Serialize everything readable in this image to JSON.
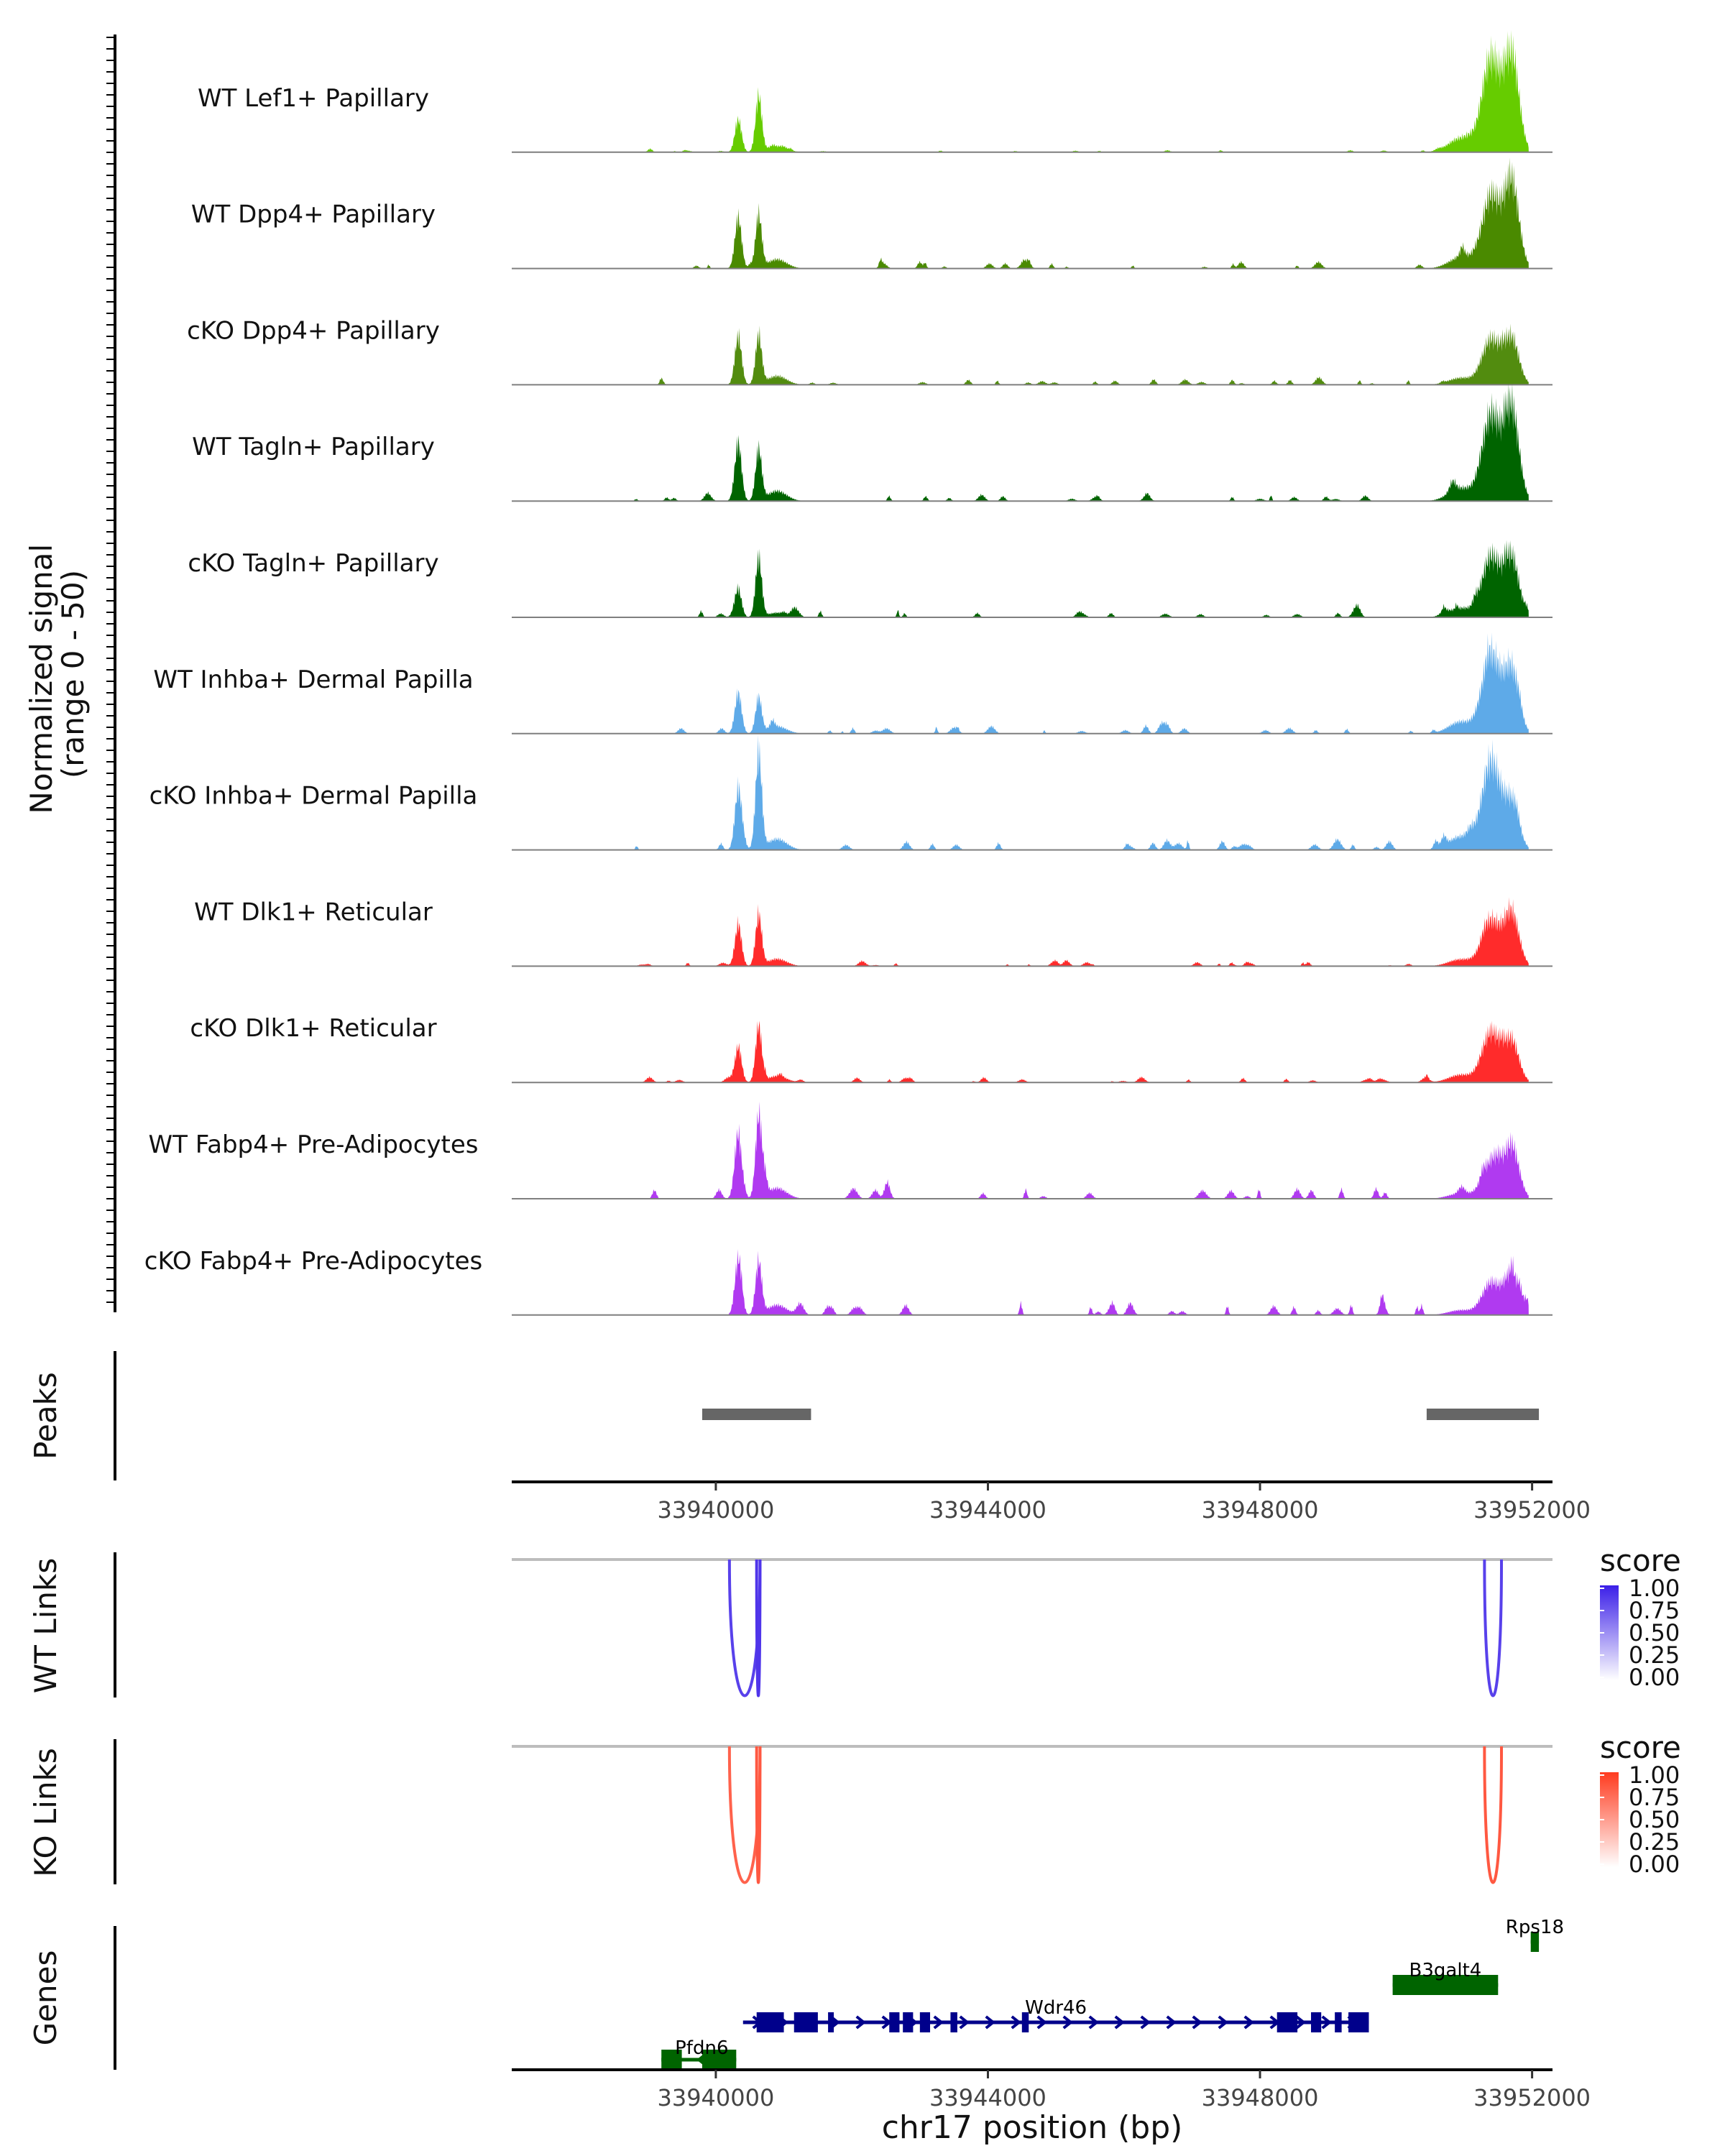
{
  "chart_data": {
    "type": "area",
    "title": "",
    "xlabel": "chr17 position (bp)",
    "ylabel": "Normalized signal (range 0 - 50)",
    "ylabel_lines": [
      "Normalized signal",
      "(range 0 - 50)"
    ],
    "xlim": [
      33937000,
      33952300
    ],
    "ylim": [
      0,
      50
    ],
    "x_ticks": [
      33940000,
      33944000,
      33948000,
      33952000
    ],
    "x_tick_labels": [
      "33940000",
      "33944000",
      "33948000",
      "33952000"
    ],
    "peak_centers": [
      33940330,
      33940630,
      33951400,
      33951700
    ],
    "tracks": [
      {
        "name": "WT Lef1+ Papillary",
        "color": "#66cc00",
        "h1": 0.32,
        "h2": 0.55,
        "h3": 0.92,
        "h4": 0.95,
        "noise": 0.015,
        "seed": 3
      },
      {
        "name": "WT Dpp4+ Papillary",
        "color": "#4a8a00",
        "h1": 0.5,
        "h2": 0.52,
        "h3": 0.72,
        "h4": 0.85,
        "noise": 0.05,
        "seed": 7
      },
      {
        "name": "cKO Dpp4+ Papillary",
        "color": "#528c0f",
        "h1": 0.48,
        "h2": 0.48,
        "h3": 0.45,
        "h4": 0.45,
        "noise": 0.04,
        "seed": 11
      },
      {
        "name": "WT Tagln+ Papillary",
        "color": "#006400",
        "h1": 0.55,
        "h2": 0.5,
        "h3": 0.85,
        "h4": 0.9,
        "noise": 0.05,
        "seed": 13
      },
      {
        "name": "cKO Tagln+ Papillary",
        "color": "#006400",
        "h1": 0.25,
        "h2": 0.58,
        "h3": 0.6,
        "h4": 0.58,
        "noise": 0.06,
        "seed": 17
      },
      {
        "name": "WT Inhba+ Dermal Papilla",
        "color": "#5eaae8",
        "h1": 0.4,
        "h2": 0.35,
        "h3": 0.78,
        "h4": 0.62,
        "noise": 0.06,
        "seed": 19
      },
      {
        "name": "cKO Inhba+ Dermal Papilla",
        "color": "#5eaae8",
        "h1": 0.6,
        "h2": 0.95,
        "h3": 0.88,
        "h4": 0.45,
        "noise": 0.08,
        "seed": 23
      },
      {
        "name": "WT Dlk1+ Reticular",
        "color": "#ff2b2b",
        "h1": 0.4,
        "h2": 0.5,
        "h3": 0.45,
        "h4": 0.52,
        "noise": 0.03,
        "seed": 29
      },
      {
        "name": "cKO Dlk1+ Reticular",
        "color": "#ff2b2b",
        "h1": 0.35,
        "h2": 0.55,
        "h3": 0.5,
        "h4": 0.4,
        "noise": 0.04,
        "seed": 31
      },
      {
        "name": "WT Fabp4+ Pre-Adipocytes",
        "color": "#b03af0",
        "h1": 0.58,
        "h2": 0.8,
        "h3": 0.35,
        "h4": 0.52,
        "noise": 0.08,
        "seed": 37
      },
      {
        "name": "cKO Fabp4+ Pre-Adipocytes",
        "color": "#b03af0",
        "h1": 0.55,
        "h2": 0.52,
        "h3": 0.32,
        "h4": 0.4,
        "noise": 0.1,
        "seed": 41
      }
    ],
    "peaks": {
      "label": "Peaks",
      "color": "#666666",
      "regions": [
        [
          33939800,
          33941400
        ],
        [
          33950450,
          33952100
        ]
      ]
    },
    "links": [
      {
        "label": "WT Links",
        "legend_title": "score",
        "legend_ticks": [
          "1.00",
          "0.75",
          "0.50",
          "0.25",
          "0.00"
        ],
        "color_high": "#3b1fe8",
        "color_low": "#ffffff",
        "arcs": [
          {
            "start": 33940200,
            "end": 33940650,
            "score": 0.85
          },
          {
            "start": 33940600,
            "end": 33940650,
            "score": 0.9
          },
          {
            "start": 33951300,
            "end": 33951550,
            "score": 0.85
          }
        ]
      },
      {
        "label": "KO Links",
        "legend_title": "score",
        "legend_ticks": [
          "1.00",
          "0.75",
          "0.50",
          "0.25",
          "0.00"
        ],
        "color_high": "#ff3b1f",
        "color_low": "#ffffff",
        "arcs": [
          {
            "start": 33940200,
            "end": 33940650,
            "score": 0.8
          },
          {
            "start": 33940600,
            "end": 33940650,
            "score": 0.85
          },
          {
            "start": 33951300,
            "end": 33951550,
            "score": 0.85
          }
        ]
      }
    ],
    "genes_label": "Genes",
    "genes": [
      {
        "name": "Rps18",
        "start": 33951980,
        "end": 33952100,
        "strand": "+",
        "color": "#006400",
        "row": 0,
        "exons": [
          [
            33951980,
            33952100
          ]
        ]
      },
      {
        "name": "B3galt4",
        "start": 33949950,
        "end": 33951500,
        "strand": "-",
        "color": "#006400",
        "row": 1,
        "exons": [
          [
            33949950,
            33951500
          ]
        ]
      },
      {
        "name": "Wdr46",
        "start": 33940400,
        "end": 33949600,
        "strand": "+",
        "color": "#00008b",
        "row": 2,
        "exons": [
          [
            33940600,
            33941000
          ],
          [
            33941150,
            33941500
          ],
          [
            33941650,
            33941700
          ],
          [
            33942550,
            33942700
          ],
          [
            33942750,
            33942900
          ],
          [
            33943000,
            33943150
          ],
          [
            33943450,
            33943550
          ],
          [
            33944500,
            33944600
          ],
          [
            33948250,
            33948550
          ],
          [
            33948750,
            33948900
          ],
          [
            33949100,
            33949200
          ],
          [
            33949300,
            33949600
          ]
        ]
      },
      {
        "name": "Pfdn6",
        "start": 33939200,
        "end": 33940300,
        "strand": "-",
        "color": "#006400",
        "row": 3,
        "exons": [
          [
            33939200,
            33939500
          ],
          [
            33939800,
            33940300
          ]
        ]
      }
    ]
  }
}
